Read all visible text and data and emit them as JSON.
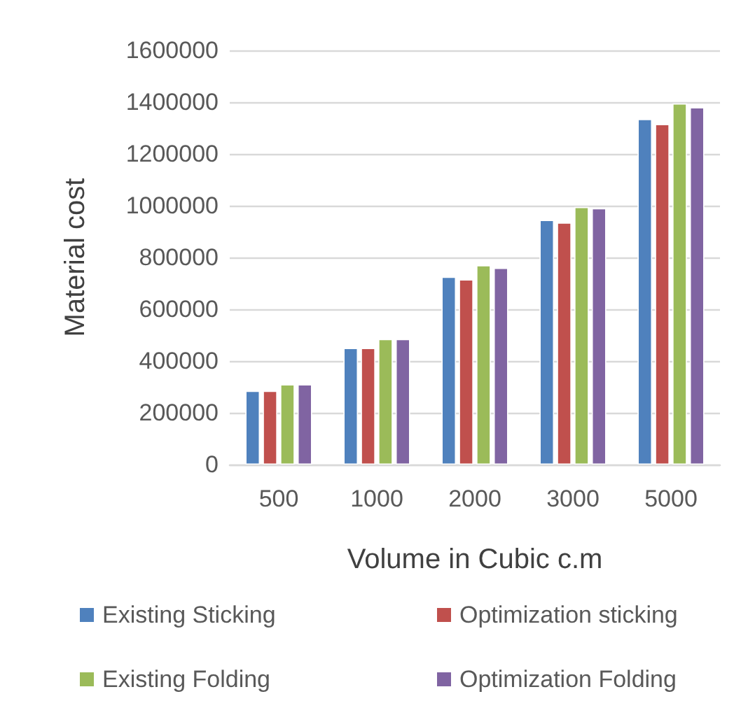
{
  "chart_data": {
    "type": "bar",
    "xlabel": "Volume in Cubic c.m",
    "ylabel": "Material cost",
    "categories": [
      "500",
      "1000",
      "2000",
      "3000",
      "5000"
    ],
    "series": [
      {
        "name": "Existing Sticking",
        "color": "#4f81bd",
        "values": [
          285000,
          450000,
          725000,
          945000,
          1335000
        ]
      },
      {
        "name": "Optimization sticking",
        "color": "#c0504d",
        "values": [
          285000,
          450000,
          715000,
          935000,
          1315000
        ]
      },
      {
        "name": "Existing Folding",
        "color": "#9bbb59",
        "values": [
          310000,
          485000,
          770000,
          995000,
          1395000
        ]
      },
      {
        "name": "Optimization Folding",
        "color": "#8064a2",
        "values": [
          310000,
          485000,
          760000,
          990000,
          1380000
        ]
      }
    ],
    "ylim": [
      0,
      1600000
    ],
    "yticks": [
      0,
      200000,
      400000,
      600000,
      800000,
      1000000,
      1200000,
      1400000,
      1600000
    ],
    "grid": "y",
    "legend": "bottom"
  }
}
